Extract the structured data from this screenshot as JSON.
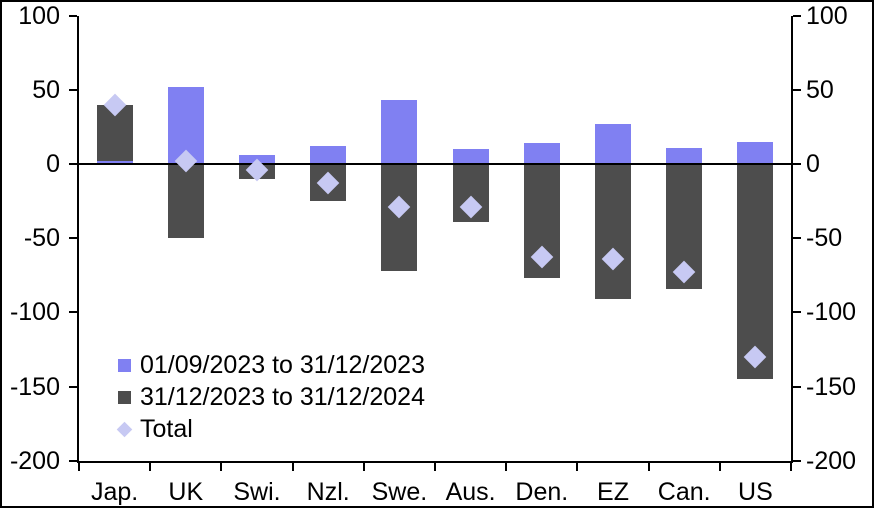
{
  "chart_data": {
    "type": "bar",
    "stacked": true,
    "title": "",
    "xlabel": "",
    "ylabel": "",
    "categories": [
      "Jap.",
      "UK",
      "Swi.",
      "Nzl.",
      "Swe.",
      "Aus.",
      "Den.",
      "EZ",
      "Can.",
      "US"
    ],
    "series": [
      {
        "name": "01/09/2023 to 31/12/2023",
        "color": "#8080f2",
        "values": [
          2,
          52,
          6,
          12,
          43,
          10,
          14,
          27,
          11,
          15
        ]
      },
      {
        "name": "31/12/2023 to 31/12/2024",
        "color": "#4d4d4d",
        "values": [
          38,
          -50,
          -10,
          -25,
          -72,
          -39,
          -77,
          -91,
          -84,
          -145
        ]
      }
    ],
    "total_series": {
      "name": "Total",
      "marker": "diamond",
      "color": "#c7c9f3",
      "values": [
        40,
        2,
        -4,
        -13,
        -29,
        -29,
        -63,
        -64,
        -73,
        -130
      ]
    },
    "ylim": [
      -200,
      100
    ],
    "yticks": [
      100,
      50,
      0,
      -50,
      -100,
      -150,
      -200
    ],
    "dual_y_axis": true,
    "grid": false,
    "axis_color": "#000000",
    "background_color": "#ffffff",
    "legend_position": "inside-bottom-left"
  }
}
